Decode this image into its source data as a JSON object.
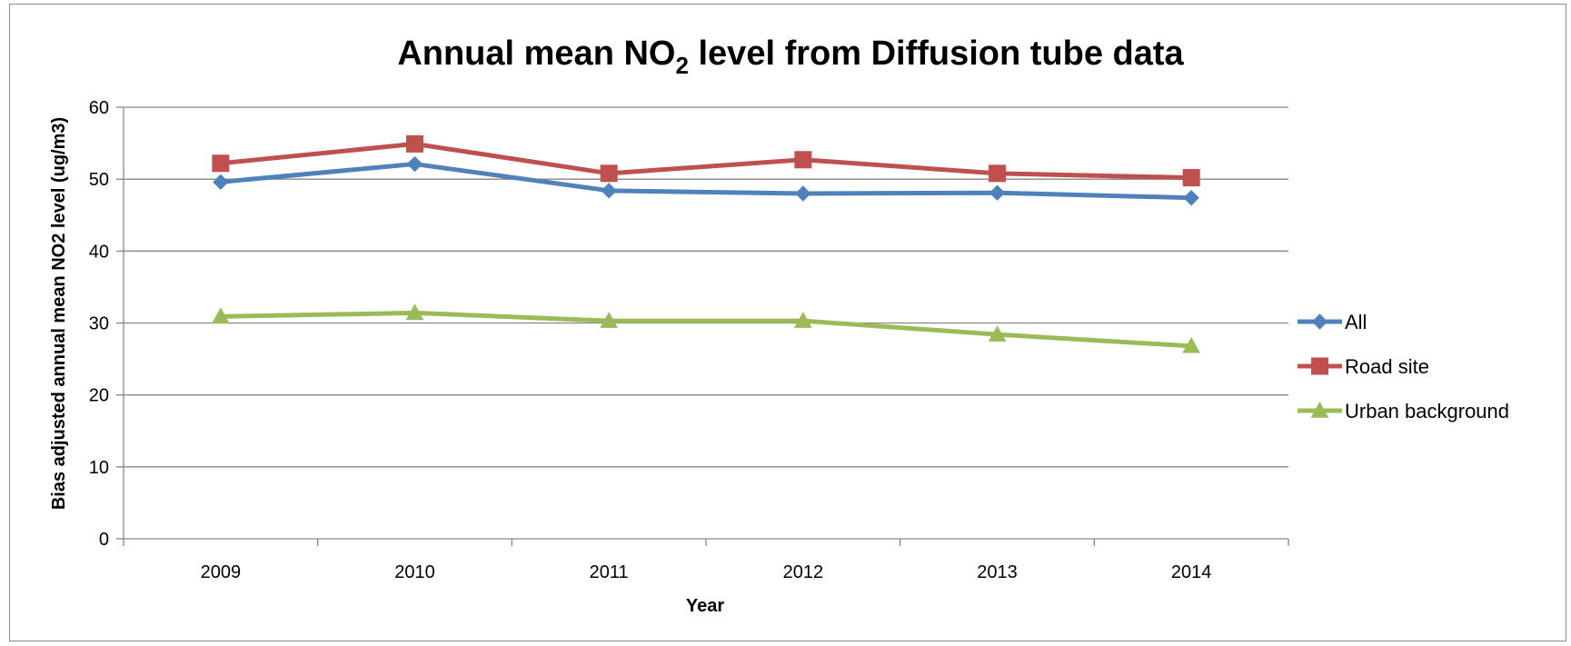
{
  "chart_data": {
    "type": "line",
    "title": "Annual mean NO",
    "title_subscript": "2",
    "title_suffix": " level from Diffusion tube data",
    "xlabel": "Year",
    "ylabel": "Bias adjusted annual mean NO2 level (ug/m3)",
    "categories": [
      "2009",
      "2010",
      "2011",
      "2012",
      "2013",
      "2014"
    ],
    "ylim": [
      0,
      60
    ],
    "yticks": [
      0,
      10,
      20,
      30,
      40,
      50,
      60
    ],
    "grid": true,
    "legend_position": "right",
    "series": [
      {
        "name": "All",
        "values": [
          49.6,
          52.1,
          48.4,
          48.0,
          48.1,
          47.4
        ],
        "color": "#4f81bd",
        "marker": "diamond"
      },
      {
        "name": "Road site",
        "values": [
          52.2,
          54.9,
          50.8,
          52.7,
          50.8,
          50.2
        ],
        "color": "#c0504d",
        "marker": "square"
      },
      {
        "name": "Urban background",
        "values": [
          30.9,
          31.4,
          30.3,
          30.3,
          28.4,
          26.8
        ],
        "color": "#9bbb59",
        "marker": "triangle"
      }
    ]
  }
}
